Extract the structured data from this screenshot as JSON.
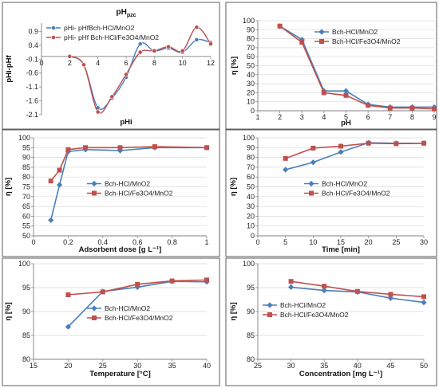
{
  "colors": {
    "blue": "#4a7ebb",
    "red": "#c0504d",
    "grid": "#d9d9d9",
    "axis": "#7f7f7f",
    "border": "#4d4d4d"
  },
  "chart_data": [
    {
      "type": "line",
      "title": "pHpzc",
      "title_main": "pH",
      "title_sub": "pzc",
      "xlabel": "pHi",
      "ylabel": "pHi-pHf",
      "xlim": [
        0,
        12
      ],
      "ylim": [
        -2.1,
        1.2
      ],
      "xticks": [
        0,
        2,
        4,
        6,
        8,
        10,
        12
      ],
      "yticks": [
        -2.1,
        -1.6,
        -1.1,
        -0.6,
        -0.1,
        0.4,
        0.9
      ],
      "grid": false,
      "smooth": true,
      "legend_position": "top-left",
      "series": [
        {
          "name": "pHi- pHfBch-HCl/MnO2",
          "color": "blue",
          "marker": "circle",
          "x": [
            2,
            3,
            4,
            5,
            6,
            7,
            8,
            9,
            10,
            11,
            12
          ],
          "y": [
            0.0,
            -0.3,
            -1.85,
            -1.5,
            -0.75,
            0.45,
            0.2,
            0.3,
            0.15,
            0.6,
            0.5
          ]
        },
        {
          "name": "pHi- pHf Bch-HCl/Fe3O4/MnO2",
          "color": "red",
          "marker": "circle",
          "x": [
            2,
            3,
            4,
            5,
            6,
            7,
            8,
            9,
            10,
            11,
            12
          ],
          "y": [
            0.0,
            -0.3,
            -2.0,
            -1.45,
            -0.65,
            0.15,
            0.2,
            0.35,
            0.2,
            1.05,
            0.45
          ]
        }
      ]
    },
    {
      "type": "line",
      "xlabel": "pH",
      "ylabel": "η [%]",
      "xlim": [
        1,
        9
      ],
      "ylim": [
        0,
        100
      ],
      "xticks": [
        1,
        2,
        3,
        4,
        5,
        6,
        7,
        8,
        9
      ],
      "yticks": [
        0,
        10,
        20,
        30,
        40,
        50,
        60,
        70,
        80,
        90,
        100
      ],
      "grid": true,
      "legend_position": "top-right",
      "series": [
        {
          "name": "Bch-HCl/MnO2",
          "color": "blue",
          "marker": "diamond",
          "x": [
            2,
            3,
            4,
            5,
            6,
            7,
            8,
            9
          ],
          "y": [
            94,
            79,
            22,
            22,
            7,
            4,
            4,
            4
          ]
        },
        {
          "name": "Bch-HCl/Fe3O4/MnO2",
          "color": "red",
          "marker": "square",
          "x": [
            2,
            3,
            4,
            5,
            6,
            7,
            8,
            9
          ],
          "y": [
            94,
            76,
            20,
            17,
            6,
            3,
            3,
            2
          ]
        }
      ]
    },
    {
      "type": "line",
      "xlabel": "Adsorbent dose [g L⁻¹]",
      "ylabel": "η [%]",
      "xlim": [
        0,
        1
      ],
      "ylim": [
        50,
        100
      ],
      "xticks": [
        0,
        0.2,
        0.4,
        0.6,
        0.8,
        1
      ],
      "yticks": [
        50,
        55,
        60,
        65,
        70,
        75,
        80,
        85,
        90,
        95,
        100
      ],
      "grid": true,
      "legend_position": "center-right",
      "series": [
        {
          "name": "Bch-HCl/MnO2",
          "color": "blue",
          "marker": "diamond",
          "x": [
            0.1,
            0.15,
            0.2,
            0.3,
            0.5,
            0.7,
            1.0
          ],
          "y": [
            58,
            76,
            93,
            94,
            93.5,
            95,
            95
          ]
        },
        {
          "name": "Bch-HCl/Fe3O4/MnO2",
          "color": "red",
          "marker": "square",
          "x": [
            0.1,
            0.15,
            0.2,
            0.3,
            0.5,
            0.7,
            1.0
          ],
          "y": [
            78,
            83.5,
            94,
            95,
            95,
            95.5,
            95
          ]
        }
      ]
    },
    {
      "type": "line",
      "xlabel": "Time [min]",
      "ylabel": "η [%]",
      "xlim": [
        0,
        30
      ],
      "ylim": [
        0,
        100
      ],
      "xticks": [
        0,
        5,
        10,
        15,
        20,
        25,
        30
      ],
      "yticks": [
        0,
        10,
        20,
        30,
        40,
        50,
        60,
        70,
        80,
        90,
        100
      ],
      "grid": true,
      "legend_position": "center-right",
      "series": [
        {
          "name": "Bch-HCl/MnO2",
          "color": "blue",
          "marker": "diamond",
          "x": [
            5,
            10,
            15,
            20,
            25,
            30
          ],
          "y": [
            67.5,
            75,
            85.5,
            95,
            94.5,
            94.5
          ]
        },
        {
          "name": "Bch-HCl/Fe3O4/MnO2",
          "color": "red",
          "marker": "square",
          "x": [
            5,
            10,
            15,
            20,
            25,
            30
          ],
          "y": [
            79,
            89.5,
            91.5,
            94.5,
            94,
            94.5
          ]
        }
      ]
    },
    {
      "type": "line",
      "xlabel": "Temperature [°C]",
      "ylabel": "η [%]",
      "xlim": [
        15,
        40
      ],
      "ylim": [
        80,
        100
      ],
      "xticks": [
        15,
        20,
        25,
        30,
        35,
        40
      ],
      "yticks": [
        80,
        85,
        90,
        95,
        100
      ],
      "grid": true,
      "legend_position": "center-right",
      "series": [
        {
          "name": "Bch-HCl/MnO2",
          "color": "blue",
          "marker": "diamond",
          "x": [
            20,
            25,
            30,
            35,
            40
          ],
          "y": [
            86.8,
            94.2,
            95.1,
            96.3,
            96.2
          ]
        },
        {
          "name": "Bch-HCl/Fe3O4/MnO2",
          "color": "red",
          "marker": "square",
          "x": [
            20,
            25,
            30,
            35,
            40
          ],
          "y": [
            93.5,
            94.1,
            95.7,
            96.4,
            96.6
          ]
        }
      ]
    },
    {
      "type": "line",
      "xlabel": "Concentration [mg L⁻¹]",
      "ylabel": "η [%]",
      "xlim": [
        25,
        50
      ],
      "ylim": [
        80,
        100
      ],
      "xticks": [
        25,
        30,
        35,
        40,
        45,
        50
      ],
      "yticks": [
        80,
        85,
        90,
        95,
        100
      ],
      "grid": true,
      "legend_position": "center-left",
      "series": [
        {
          "name": "Bch-HCl/MnO2",
          "color": "blue",
          "marker": "diamond",
          "x": [
            30,
            35,
            40,
            45,
            50
          ],
          "y": [
            95.1,
            94.4,
            94.1,
            92.8,
            91.9
          ]
        },
        {
          "name": "Bch-HCl/Fe3O4/MnO2",
          "color": "red",
          "marker": "square",
          "x": [
            30,
            35,
            40,
            45,
            50
          ],
          "y": [
            96.3,
            95.3,
            94.2,
            93.6,
            93.1
          ]
        }
      ]
    }
  ]
}
